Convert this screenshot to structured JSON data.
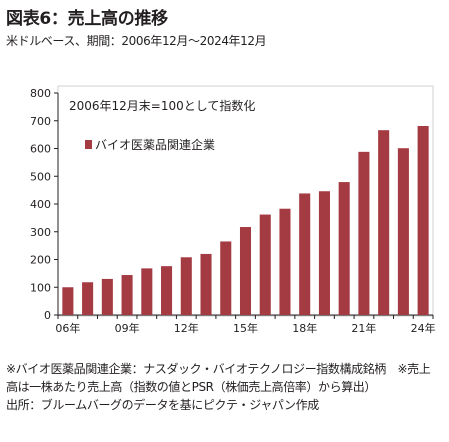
{
  "header": {
    "title": "図表6：売上高の推移",
    "subtitle": "米ドルベース、期間：2006年12月～2024年12月"
  },
  "chart_data": {
    "type": "bar",
    "x": [
      "2006",
      "2007",
      "2008",
      "2009",
      "2010",
      "2011",
      "2012",
      "2013",
      "2014",
      "2015",
      "2016",
      "2017",
      "2018",
      "2019",
      "2020",
      "2021",
      "2022",
      "2023",
      "2024"
    ],
    "x_tick_labels": [
      "06年",
      "",
      "",
      "09年",
      "",
      "",
      "12年",
      "",
      "",
      "15年",
      "",
      "",
      "18年",
      "",
      "",
      "21年",
      "",
      "",
      "24年"
    ],
    "series": [
      {
        "name": "バイオ医薬品関連企業",
        "values": [
          100,
          118,
          130,
          144,
          168,
          176,
          208,
          220,
          265,
          317,
          362,
          383,
          438,
          446,
          479,
          588,
          666,
          601,
          681
        ]
      }
    ],
    "annotation": "2006年12月末=100として指数化",
    "ylim": [
      0,
      800
    ],
    "y_ticks": [
      0,
      100,
      200,
      300,
      400,
      500,
      600,
      700,
      800
    ],
    "grid": false,
    "legend_position": "top-left",
    "bar_color": "#a43a42"
  },
  "notes": [
    "※バイオ医薬品関連企業：ナスダック・バイオテクノロジー指数構成銘柄　※売上高は一株あたり売上高（指数の値とPSR（株価売上高倍率）から算出）",
    "出所：ブルームバーグのデータを基にピクテ・ジャパン作成"
  ]
}
